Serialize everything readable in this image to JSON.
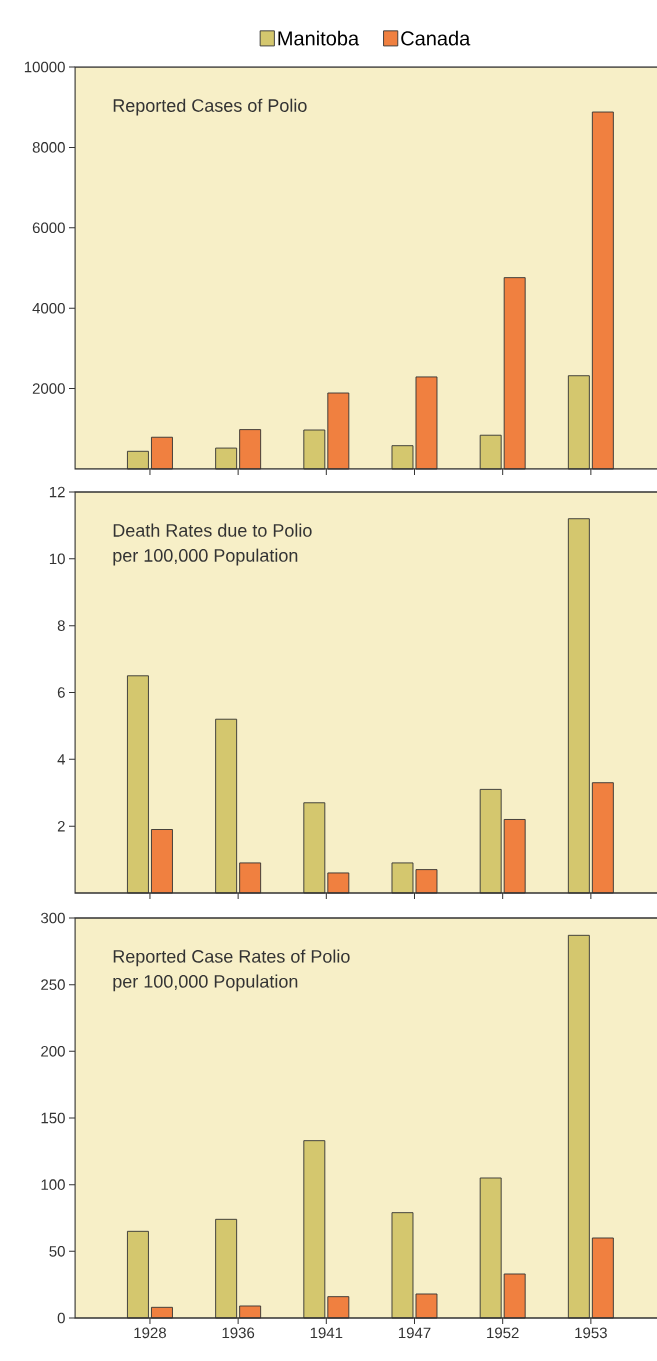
{
  "chart_data": [
    {
      "type": "bar",
      "title": "Reported Cases of Polio",
      "categories": [
        "1928",
        "1936",
        "1941",
        "1947",
        "1952",
        "1953"
      ],
      "legend": "top",
      "tick_labels": "y",
      "ylim": [
        0,
        10000
      ],
      "yticks": [
        2000,
        4000,
        6000,
        8000,
        10000
      ],
      "series": [
        {
          "name": "Manitoba",
          "color": "#d4c76e",
          "values": [
            440,
            520,
            970,
            580,
            840,
            2320
          ]
        },
        {
          "name": "Canada",
          "color": "#f08040",
          "values": [
            790,
            980,
            1890,
            2290,
            4760,
            8880
          ]
        }
      ]
    },
    {
      "type": "bar",
      "title": "Death Rates due to Polio",
      "subtitle": "per 100,000 Population",
      "categories": [
        "1928",
        "1936",
        "1941",
        "1947",
        "1952",
        "1953"
      ],
      "tick_labels": "y",
      "ylim": [
        0,
        12
      ],
      "yticks": [
        2,
        4,
        6,
        8,
        10,
        12
      ],
      "series": [
        {
          "color": "#d4c76e",
          "values": [
            6.5,
            5.2,
            2.7,
            0.9,
            3.1,
            11.2
          ]
        },
        {
          "color": "#f08040",
          "values": [
            1.9,
            0.9,
            0.6,
            0.7,
            2.2,
            3.3
          ]
        }
      ]
    },
    {
      "type": "bar",
      "title": "Reported Case Rates of Polio",
      "subtitle": "per 100,000 Population",
      "categories": [
        "1928",
        "1936",
        "1941",
        "1947",
        "1952",
        "1953"
      ],
      "ylim": [
        0,
        300
      ],
      "yticks": [
        0,
        50,
        100,
        150,
        200,
        250,
        300
      ],
      "series": [
        {
          "color": "#d4c76e",
          "values": [
            65,
            74,
            133,
            79,
            105,
            287
          ]
        },
        {
          "color": "#f08040",
          "values": [
            8,
            9,
            16,
            18,
            33,
            60
          ]
        }
      ]
    }
  ]
}
